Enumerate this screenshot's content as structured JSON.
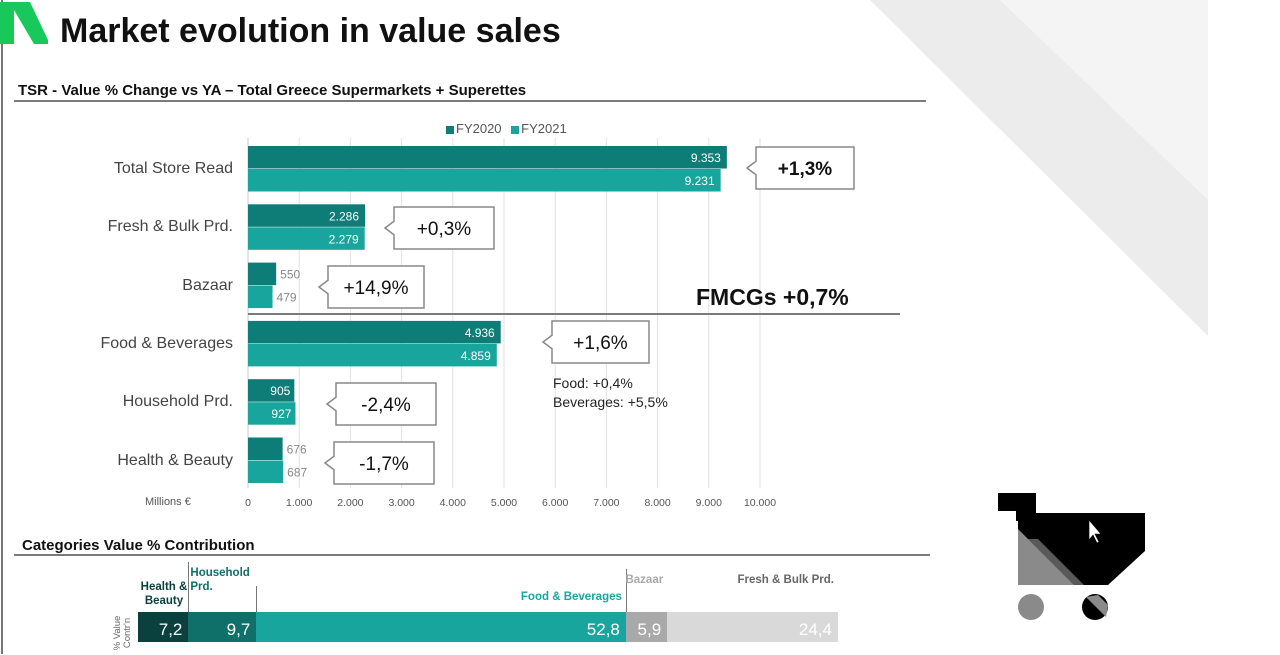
{
  "header": {
    "title": "Market evolution in value sales",
    "subtitle": "TSR - Value % Change vs YA – Total Greece Supermarkets + Superettes",
    "fmcg_label": "FMCGs  +0,7%",
    "notes": [
      "Food: +0,4%",
      "Beverages: +5,5%"
    ]
  },
  "colors": {
    "fy2020": "#0e7c77",
    "fy2021": "#18a59d",
    "logo": "#19c85a"
  },
  "chart_data": [
    {
      "type": "bar",
      "orientation": "horizontal",
      "title": "TSR - Value % Change vs YA – Total Greece Supermarkets + Superettes",
      "categories": [
        "Total Store Read",
        "Fresh & Bulk Prd.",
        "Bazaar",
        "Food & Beverages",
        "Household Prd.",
        "Health & Beauty"
      ],
      "series": [
        {
          "name": "FY2020",
          "values": [
            9353,
            2286,
            550,
            4936,
            905,
            676
          ],
          "labels": [
            "9.353",
            "2.286",
            "550",
            "4.936",
            "905",
            "676"
          ]
        },
        {
          "name": "FY2021",
          "values": [
            9231,
            2279,
            479,
            4859,
            927,
            687
          ],
          "labels": [
            "9.231",
            "2.279",
            "479",
            "4.859",
            "927",
            "687"
          ]
        }
      ],
      "changes": [
        "+1,3%",
        "+0,3%",
        "+14,9%",
        "+1,6%",
        "-2,4%",
        "-1,7%"
      ],
      "xlabel": "Millions €",
      "xlim": [
        0,
        10000
      ],
      "xticks": [
        0,
        1000,
        2000,
        3000,
        4000,
        5000,
        6000,
        7000,
        8000,
        9000,
        10000
      ],
      "xtick_labels": [
        "0",
        "1.000",
        "2.000",
        "3.000",
        "4.000",
        "5.000",
        "6.000",
        "7.000",
        "8.000",
        "9.000",
        "10.000"
      ],
      "grid": true,
      "legend": "top"
    },
    {
      "type": "bar",
      "orientation": "horizontal",
      "stacked": true,
      "title": "Categories Value % Contribution",
      "ylabel": "% Value Contr'n",
      "series": [
        {
          "name": "Health & Beauty",
          "value": 7.2,
          "label": "7,2",
          "color": "#0a403d",
          "name_color": "#0a403d"
        },
        {
          "name": "Household Prd.",
          "value": 9.7,
          "label": "9,7",
          "color": "#0f6f69",
          "name_color": "#0f6f69"
        },
        {
          "name": "Food & Beverages",
          "value": 52.8,
          "label": "52,8",
          "color": "#18a59d",
          "name_color": "#18a59d"
        },
        {
          "name": "Bazaar",
          "value": 5.9,
          "label": "5,9",
          "color": "#a9a9a9",
          "name_color": "#a9a9a9"
        },
        {
          "name": "Fresh & Bulk Prd.",
          "value": 24.4,
          "label": "24,4",
          "color": "#d9d9d9",
          "name_color": "#666666"
        }
      ]
    }
  ]
}
